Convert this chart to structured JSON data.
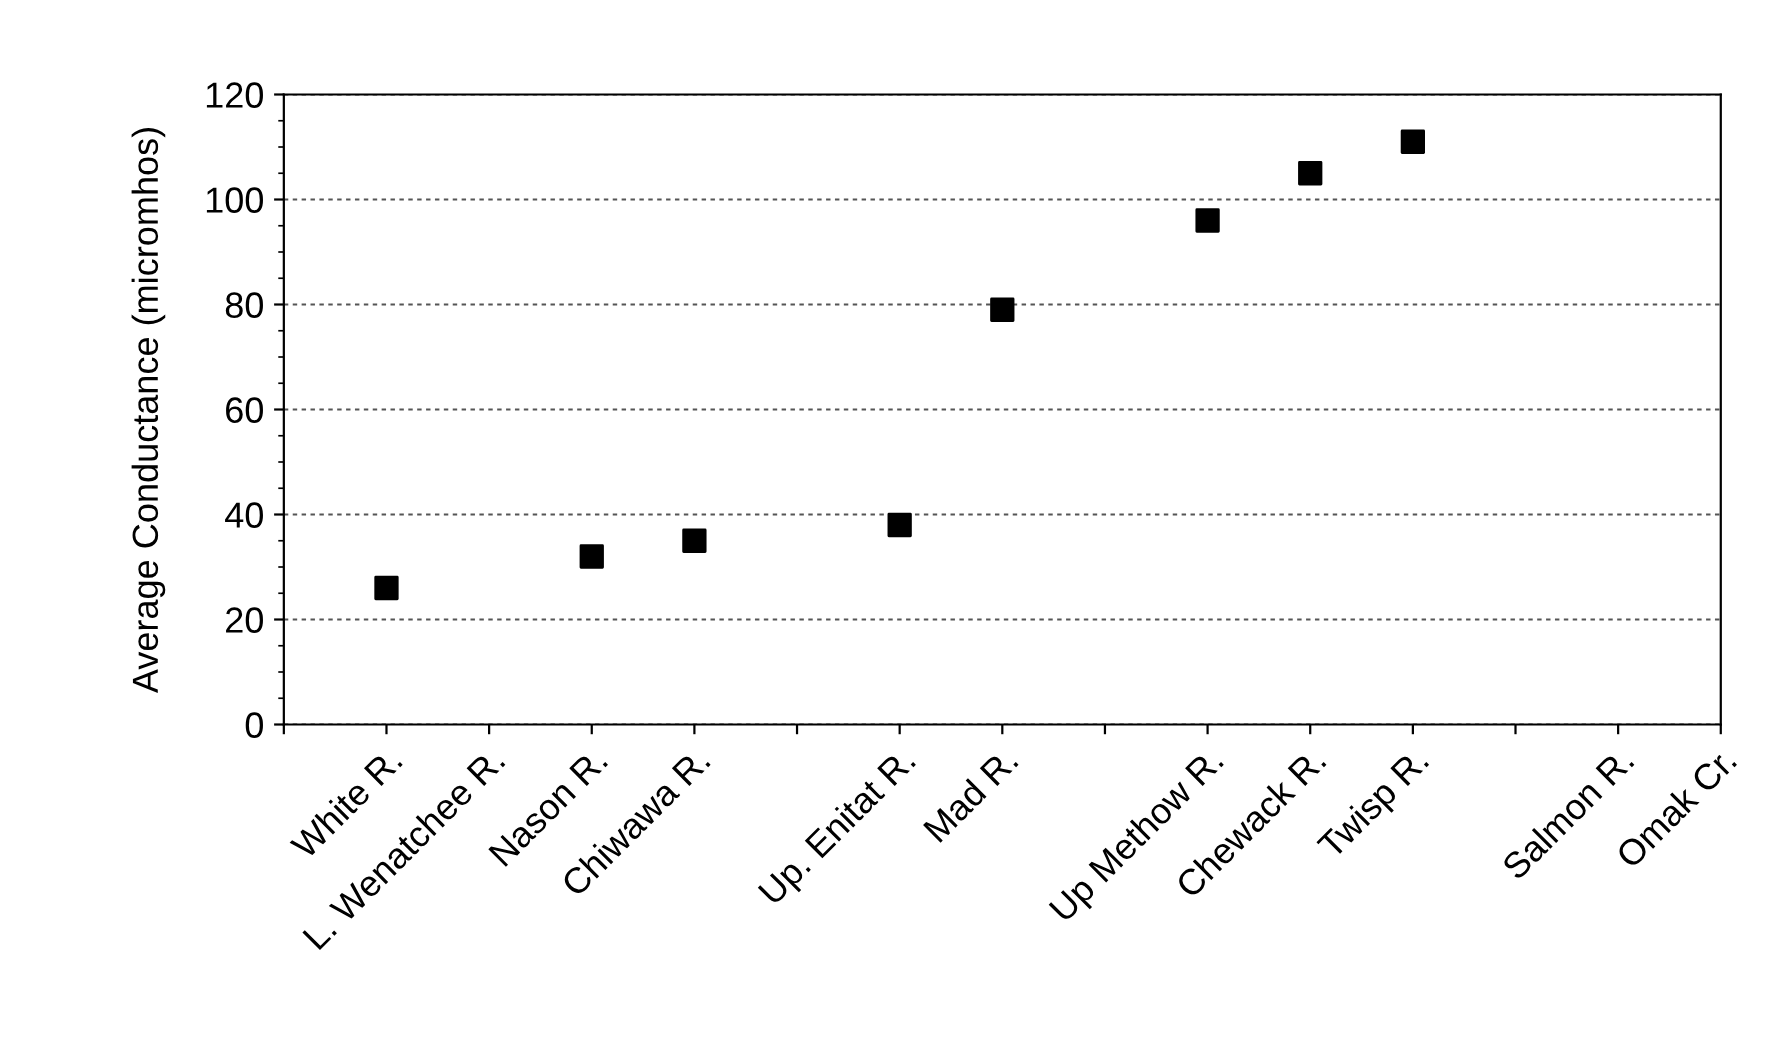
{
  "chart_data": {
    "type": "scatter",
    "ylabel": "Average Conductance (micromhos)",
    "categories": [
      null,
      "White R.",
      "L. Wenatchee R.",
      "Nason R.",
      "Chiwawa R.",
      null,
      "Up. Enitat R.",
      "Mad R.",
      null,
      "Up Methow R.",
      "Chewack R.",
      "Twisp R.",
      null,
      "Salmon R.",
      "Omak Cr."
    ],
    "series": [
      {
        "color": "#000000",
        "values": [
          null,
          26,
          null,
          32,
          35,
          null,
          38,
          79,
          null,
          96,
          105,
          111,
          null,
          null,
          null
        ]
      }
    ],
    "ylim": [
      0,
      120
    ],
    "yticks": [
      0,
      20,
      40,
      60,
      80,
      100,
      120
    ],
    "grid": "y",
    "marker": "square",
    "legend": false
  }
}
